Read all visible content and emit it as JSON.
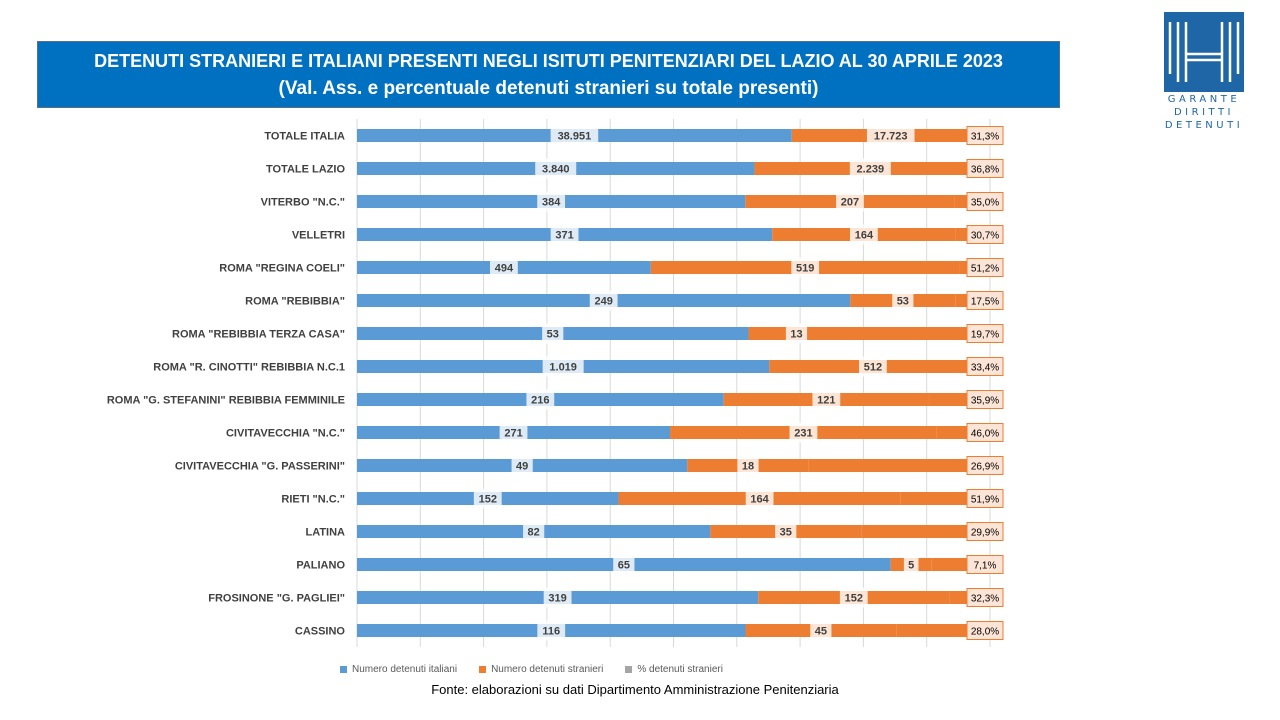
{
  "title": {
    "line1": "DETENUTI STRANIERI E ITALIANI PRESENTI NEGLI ISITUTI PENITENZIARI DEL LAZIO AL 30 APRILE 2023",
    "line2": "(Val. Ass. e percentuale  detenuti stranieri su totale presenti)"
  },
  "logo": {
    "lines": [
      "GARANTE",
      "DIRITTI",
      "DETENUTI"
    ]
  },
  "colors": {
    "italiani": "#5b9bd5",
    "stranieri": "#ed7d31",
    "percent": "#a5a5a5",
    "title_bg": "#0070c0"
  },
  "legend": {
    "italiani": "Numero detenuti italiani",
    "stranieri": "Numero detenuti stranieri",
    "percent": "% detenuti stranieri"
  },
  "source": "Fonte: elaborazioni su dati Dipartimento Amministrazione Penitenziaria",
  "chart_data": {
    "type": "bar",
    "orientation": "horizontal",
    "stacked": "percent",
    "categories": [
      "TOTALE ITALIA",
      "TOTALE LAZIO",
      "VITERBO \"N.C.\"",
      "VELLETRI",
      "ROMA \"REGINA COELI\"",
      "ROMA \"REBIBBIA\"",
      "ROMA \"REBIBBIA TERZA CASA\"",
      "ROMA \"R. CINOTTI\" REBIBBIA N.C.1",
      "ROMA \"G. STEFANINI\" REBIBBIA FEMMINILE",
      "CIVITAVECCHIA \"N.C.\"",
      "CIVITAVECCHIA \"G. PASSERINI\"",
      "RIETI \"N.C.\"",
      "LATINA",
      "PALIANO",
      "FROSINONE \"G. PAGLIEI\"",
      "CASSINO"
    ],
    "series": [
      {
        "name": "Numero detenuti italiani",
        "values": [
          38951,
          3840,
          384,
          371,
          494,
          249,
          53,
          1019,
          216,
          271,
          49,
          152,
          82,
          65,
          319,
          116
        ],
        "labels": [
          "38.951",
          "3.840",
          "384",
          "371",
          "494",
          "249",
          "53",
          "1.019",
          "216",
          "271",
          "49",
          "152",
          "82",
          "65",
          "319",
          "116"
        ]
      },
      {
        "name": "Numero detenuti stranieri",
        "values": [
          17723,
          2239,
          207,
          164,
          519,
          53,
          13,
          512,
          121,
          231,
          18,
          164,
          35,
          5,
          152,
          45
        ],
        "labels": [
          "17.723",
          "2.239",
          "207",
          "164",
          "519",
          "53",
          "13",
          "512",
          "121",
          "231",
          "18",
          "164",
          "35",
          "5",
          "152",
          "45"
        ]
      },
      {
        "name": "% detenuti stranieri",
        "values": [
          31.3,
          36.8,
          35.0,
          30.7,
          51.2,
          17.5,
          19.7,
          33.4,
          35.9,
          46.0,
          26.9,
          51.9,
          29.9,
          7.1,
          32.3,
          28.0
        ],
        "labels": [
          "31,3%",
          "36,8%",
          "35,0%",
          "30,7%",
          "51,2%",
          "17,5%",
          "19,7%",
          "33,4%",
          "35,9%",
          "46,0%",
          "26,9%",
          "51,9%",
          "29,9%",
          "7,1%",
          "32,3%",
          "28,0%"
        ]
      }
    ],
    "grid": true,
    "legend_position": "bottom"
  }
}
